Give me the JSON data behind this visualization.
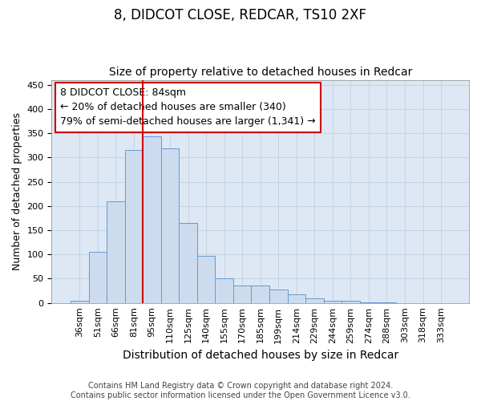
{
  "title1": "8, DIDCOT CLOSE, REDCAR, TS10 2XF",
  "title2": "Size of property relative to detached houses in Redcar",
  "xlabel": "Distribution of detached houses by size in Redcar",
  "ylabel": "Number of detached properties",
  "categories": [
    "36sqm",
    "51sqm",
    "66sqm",
    "81sqm",
    "95sqm",
    "110sqm",
    "125sqm",
    "140sqm",
    "155sqm",
    "170sqm",
    "185sqm",
    "199sqm",
    "214sqm",
    "229sqm",
    "244sqm",
    "259sqm",
    "274sqm",
    "288sqm",
    "303sqm",
    "318sqm",
    "333sqm"
  ],
  "values": [
    5,
    106,
    210,
    316,
    344,
    318,
    165,
    97,
    51,
    36,
    36,
    28,
    18,
    10,
    4,
    4,
    1,
    1,
    0,
    0,
    0
  ],
  "bar_color": "#ccdcee",
  "bar_edge_color": "#6699cc",
  "vline_color": "#cc0000",
  "vline_pos": 3.5,
  "annotation_text": "8 DIDCOT CLOSE: 84sqm\n← 20% of detached houses are smaller (340)\n79% of semi-detached houses are larger (1,341) →",
  "annotation_box_facecolor": "#ffffff",
  "annotation_box_edgecolor": "#cc0000",
  "ylim": [
    0,
    460
  ],
  "yticks": [
    0,
    50,
    100,
    150,
    200,
    250,
    300,
    350,
    400,
    450
  ],
  "grid_color": "#b8cce0",
  "bg_color": "#dde8f4",
  "footnote": "Contains HM Land Registry data © Crown copyright and database right 2024.\nContains public sector information licensed under the Open Government Licence v3.0.",
  "title1_fontsize": 12,
  "title2_fontsize": 10,
  "xlabel_fontsize": 10,
  "ylabel_fontsize": 9,
  "tick_fontsize": 8,
  "annotation_fontsize": 9,
  "footnote_fontsize": 7
}
